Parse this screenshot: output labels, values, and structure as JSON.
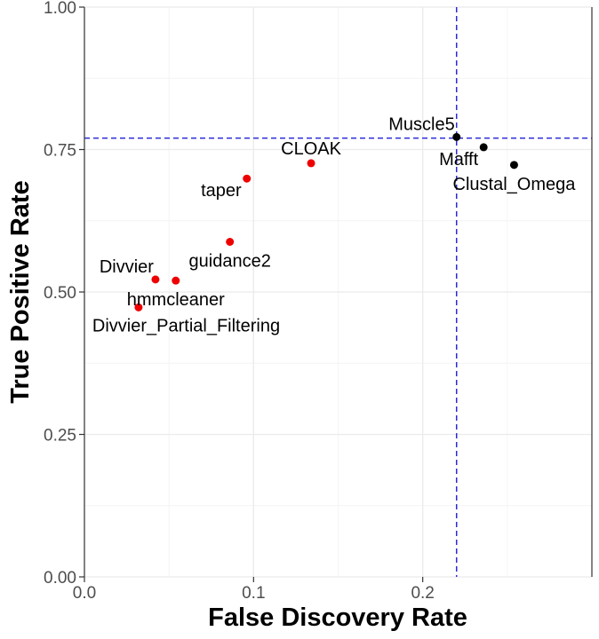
{
  "chart_data": {
    "type": "scatter",
    "title": "",
    "xlabel": "False Discovery Rate",
    "ylabel": "True Positive Rate",
    "xlim": [
      0,
      0.3
    ],
    "ylim": [
      0,
      1
    ],
    "x_ticks": [
      {
        "value": 0,
        "label": "0.0"
      },
      {
        "value": 0.1,
        "label": "0.1"
      },
      {
        "value": 0.2,
        "label": "0.2"
      }
    ],
    "y_ticks": [
      {
        "value": 0,
        "label": "0.00"
      },
      {
        "value": 0.25,
        "label": "0.25"
      },
      {
        "value": 0.5,
        "label": "0.50"
      },
      {
        "value": 0.75,
        "label": "0.75"
      },
      {
        "value": 1,
        "label": "1.00"
      }
    ],
    "grid": true,
    "reference_lines": {
      "x": 0.22,
      "y": 0.77,
      "color": "#2b2bd6",
      "style": "dashed"
    },
    "points": [
      {
        "label": "CLOAK",
        "x": 0.134,
        "y": 0.726,
        "color": "#ee0000",
        "label_pos": "above"
      },
      {
        "label": "taper",
        "x": 0.096,
        "y": 0.699,
        "color": "#ee0000",
        "label_pos": "below-left"
      },
      {
        "label": "guidance2",
        "x": 0.086,
        "y": 0.588,
        "color": "#ee0000",
        "label_pos": "below"
      },
      {
        "label": "Divvier",
        "x": 0.042,
        "y": 0.522,
        "color": "#ee0000",
        "label_pos": "above-left"
      },
      {
        "label": "hmmcleaner",
        "x": 0.054,
        "y": 0.52,
        "color": "#ee0000",
        "label_pos": "below"
      },
      {
        "label": "Divvier_Partial_Filtering",
        "x": 0.032,
        "y": 0.473,
        "color": "#ee0000",
        "label_pos": "below-right"
      },
      {
        "label": "Muscle5",
        "x": 0.22,
        "y": 0.772,
        "color": "#000000",
        "label_pos": "above-left"
      },
      {
        "label": "Mafft",
        "x": 0.236,
        "y": 0.754,
        "color": "#000000",
        "label_pos": "below-left"
      },
      {
        "label": "Clustal_Omega",
        "x": 0.254,
        "y": 0.723,
        "color": "#000000",
        "label_pos": "below"
      }
    ]
  }
}
